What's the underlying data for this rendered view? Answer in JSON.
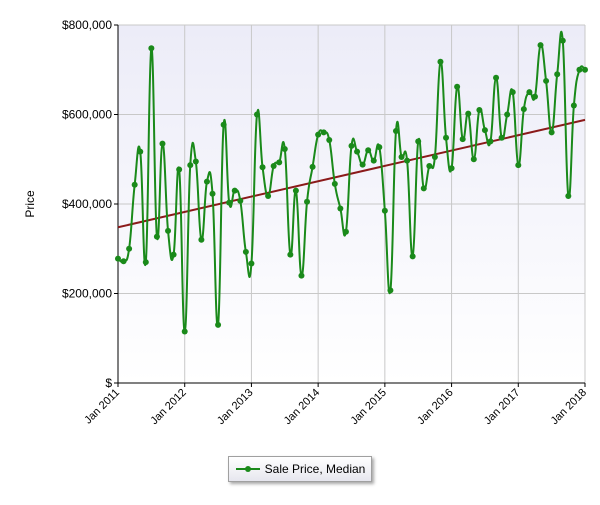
{
  "chart_data": {
    "type": "line",
    "title": "",
    "xlabel": "",
    "ylabel": "Price",
    "ylim": [
      0,
      800000
    ],
    "y_ticks": [
      0,
      200000,
      400000,
      600000,
      800000
    ],
    "y_tick_labels": [
      "$",
      "$200,000",
      "$400,000",
      "$600,000",
      "$800,000"
    ],
    "x_ticks": [
      "Jan 2011",
      "Jan 2012",
      "Jan 2013",
      "Jan 2014",
      "Jan 2015",
      "Jan 2016",
      "Jan 2017",
      "Jan 2018"
    ],
    "x_start": "2011-01",
    "grid": true,
    "legend_position": "bottom-center",
    "colors": {
      "series": "#1a8a1a",
      "trend": "#8b1a1a",
      "plot_bg_top": "#ececf8",
      "plot_bg_bottom": "#ffffff"
    },
    "series": [
      {
        "name": "Sale Price, Median",
        "x": [
          "2011-01",
          "2011-02",
          "2011-03",
          "2011-04",
          "2011-05",
          "2011-06",
          "2011-07",
          "2011-08",
          "2011-09",
          "2011-10",
          "2011-11",
          "2011-12",
          "2012-01",
          "2012-02",
          "2012-03",
          "2012-04",
          "2012-05",
          "2012-06",
          "2012-07",
          "2012-08",
          "2012-09",
          "2012-10",
          "2012-11",
          "2012-12",
          "2013-01",
          "2013-02",
          "2013-03",
          "2013-04",
          "2013-05",
          "2013-06",
          "2013-07",
          "2013-08",
          "2013-09",
          "2013-10",
          "2013-11",
          "2013-12",
          "2014-01",
          "2014-02",
          "2014-03",
          "2014-04",
          "2014-05",
          "2014-06",
          "2014-07",
          "2014-08",
          "2014-09",
          "2014-10",
          "2014-11",
          "2014-12",
          "2015-01",
          "2015-02",
          "2015-03",
          "2015-04",
          "2015-05",
          "2015-06",
          "2015-07",
          "2015-08",
          "2015-09",
          "2015-10",
          "2015-11",
          "2015-12",
          "2016-01",
          "2016-02",
          "2016-03",
          "2016-04",
          "2016-05",
          "2016-06",
          "2016-07",
          "2016-08",
          "2016-09",
          "2016-10",
          "2016-11",
          "2016-12",
          "2017-01",
          "2017-02",
          "2017-03",
          "2017-04",
          "2017-05",
          "2017-06",
          "2017-07",
          "2017-08",
          "2017-09",
          "2017-10",
          "2017-11",
          "2017-12",
          "2018-01"
        ],
        "values": [
          278000,
          272000,
          300000,
          443000,
          517000,
          270000,
          748000,
          327000,
          535000,
          340000,
          287000,
          477000,
          115000,
          487000,
          495000,
          320000,
          450000,
          423000,
          130000,
          577000,
          403000,
          430000,
          407000,
          293000,
          267000,
          600000,
          482000,
          418000,
          485000,
          493000,
          523000,
          287000,
          430000,
          240000,
          405000,
          483000,
          555000,
          560000,
          543000,
          445000,
          390000,
          338000,
          530000,
          517000,
          488000,
          520000,
          497000,
          527000,
          385000,
          207000,
          563000,
          505000,
          497000,
          283000,
          540000,
          435000,
          485000,
          505000,
          718000,
          548000,
          480000,
          662000,
          545000,
          602000,
          500000,
          610000,
          565000,
          540000,
          682000,
          548000,
          600000,
          650000,
          487000,
          612000,
          650000,
          640000,
          755000,
          675000,
          560000,
          690000,
          765000,
          418000,
          620000,
          700000,
          700000
        ]
      },
      {
        "name": "",
        "type": "trendline",
        "x": [
          "2011-01",
          "2018-01"
        ],
        "values": [
          348000,
          588000
        ]
      }
    ]
  }
}
